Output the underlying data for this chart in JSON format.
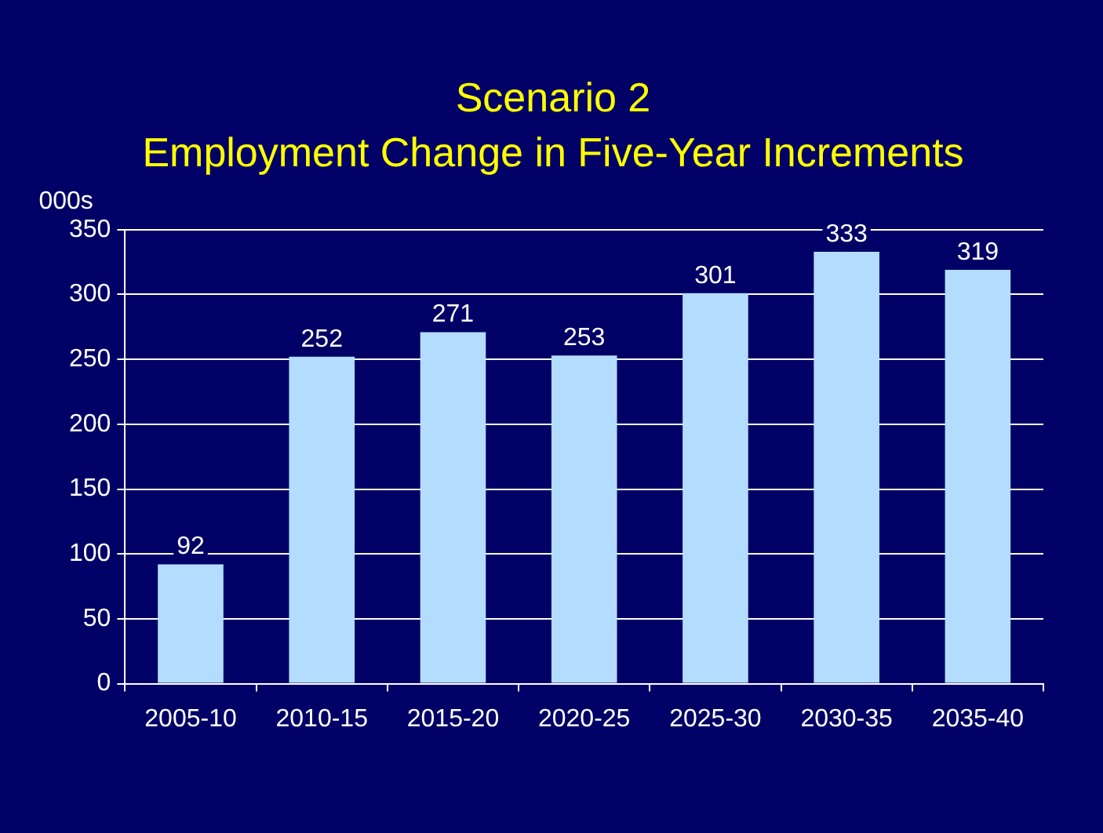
{
  "chart_data": {
    "type": "bar",
    "title": "Scenario 2",
    "subtitle": "Employment Change in Five-Year Increments",
    "ylabel": "000s",
    "categories": [
      "2005-10",
      "2010-15",
      "2015-20",
      "2020-25",
      "2025-30",
      "2030-35",
      "2035-40"
    ],
    "values": [
      92,
      252,
      271,
      253,
      301,
      333,
      319
    ],
    "color": "#b3dcff",
    "ylim": [
      0,
      350
    ],
    "yticks": [
      0,
      50,
      100,
      150,
      200,
      250,
      300,
      350
    ],
    "grid": "y",
    "data_labels": true,
    "legend": false
  }
}
